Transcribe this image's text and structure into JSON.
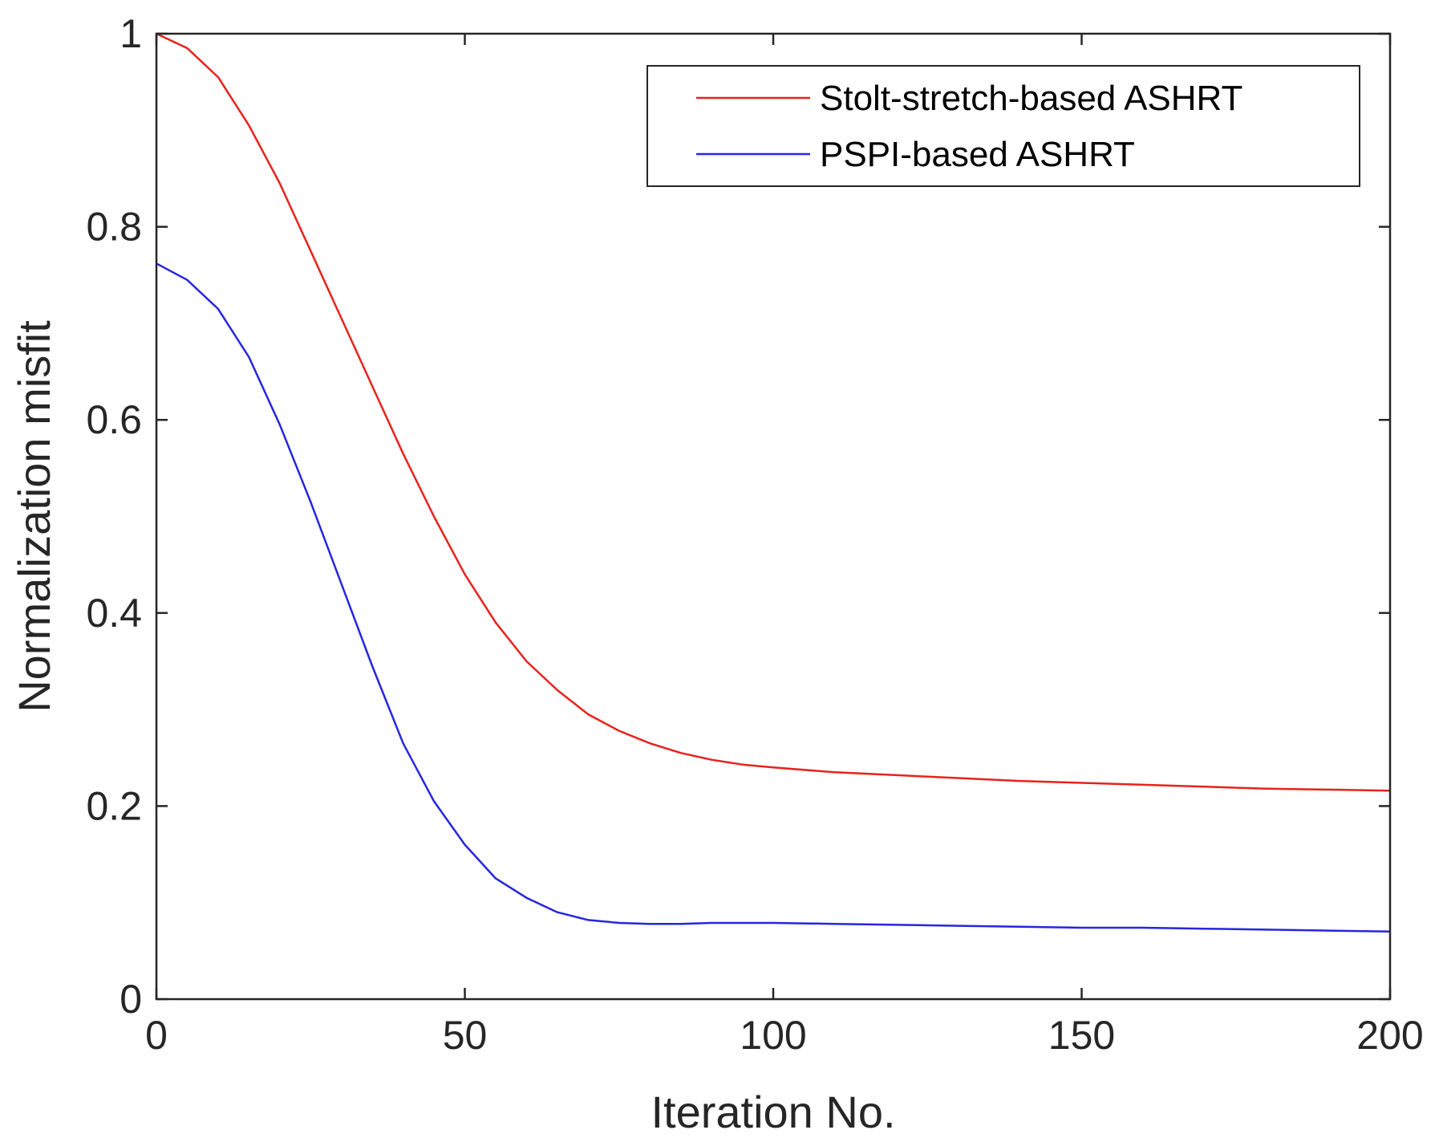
{
  "chart_data": {
    "type": "line",
    "title": "",
    "xlabel": "Iteration No.",
    "ylabel": "Normalization misfit",
    "xlim": [
      0,
      200
    ],
    "ylim": [
      0,
      1
    ],
    "xticks": [
      0,
      50,
      100,
      150,
      200
    ],
    "yticks": [
      0,
      0.2,
      0.4,
      0.6,
      0.8,
      1
    ],
    "xtick_labels": [
      "0",
      "50",
      "100",
      "150",
      "200"
    ],
    "ytick_labels": [
      "0",
      "0.2",
      "0.4",
      "0.6",
      "0.8",
      "1"
    ],
    "grid": false,
    "legend": "top-right",
    "series": [
      {
        "name": "Stolt-stretch-based ASHRT",
        "color": "#e8221c",
        "x": [
          0,
          5,
          10,
          15,
          20,
          25,
          30,
          35,
          40,
          45,
          50,
          55,
          60,
          65,
          70,
          75,
          80,
          85,
          90,
          95,
          100,
          110,
          120,
          130,
          140,
          150,
          160,
          170,
          180,
          190,
          200
        ],
        "y": [
          1.0,
          0.985,
          0.955,
          0.905,
          0.845,
          0.775,
          0.705,
          0.635,
          0.565,
          0.5,
          0.44,
          0.39,
          0.35,
          0.32,
          0.295,
          0.278,
          0.265,
          0.255,
          0.248,
          0.243,
          0.24,
          0.235,
          0.232,
          0.229,
          0.226,
          0.224,
          0.222,
          0.22,
          0.218,
          0.217,
          0.216
        ]
      },
      {
        "name": "PSPI-based ASHRT",
        "color": "#2626e0",
        "x": [
          0,
          5,
          10,
          15,
          20,
          25,
          30,
          35,
          40,
          45,
          50,
          55,
          60,
          65,
          70,
          75,
          80,
          85,
          90,
          95,
          100,
          110,
          120,
          130,
          140,
          150,
          160,
          170,
          180,
          190,
          200
        ],
        "y": [
          0.762,
          0.745,
          0.715,
          0.665,
          0.595,
          0.515,
          0.43,
          0.345,
          0.265,
          0.205,
          0.16,
          0.125,
          0.105,
          0.09,
          0.082,
          0.079,
          0.078,
          0.078,
          0.079,
          0.079,
          0.079,
          0.078,
          0.077,
          0.076,
          0.075,
          0.074,
          0.074,
          0.073,
          0.072,
          0.071,
          0.07
        ]
      }
    ]
  }
}
